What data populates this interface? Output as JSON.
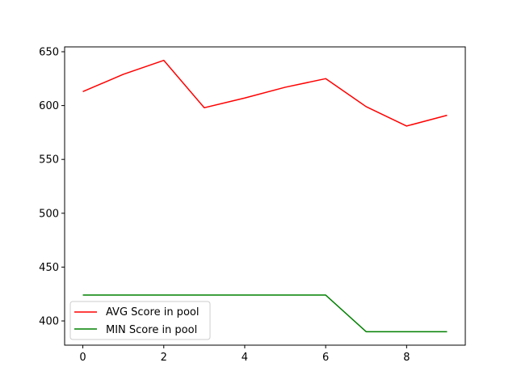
{
  "chart_data": {
    "type": "line",
    "title": "",
    "xlabel": "",
    "ylabel": "",
    "x": [
      0,
      1,
      2,
      3,
      4,
      5,
      6,
      7,
      8,
      9
    ],
    "xlim": [
      -0.45,
      9.45
    ],
    "ylim": [
      377.5,
      654.5
    ],
    "x_ticks": [
      0,
      2,
      4,
      6,
      8
    ],
    "y_ticks": [
      400,
      450,
      500,
      550,
      600,
      650
    ],
    "x_tick_labels": [
      "0",
      "2",
      "4",
      "6",
      "8"
    ],
    "y_tick_labels": [
      "400",
      "450",
      "500",
      "550",
      "600",
      "650"
    ],
    "grid": false,
    "legend_position": "lower-left",
    "series": [
      {
        "name": "AVG Score in pool",
        "color": "#ff0000",
        "values": [
          613,
          629,
          642,
          598,
          607,
          617,
          625,
          599,
          581,
          591
        ]
      },
      {
        "name": "MIN Score in pool",
        "color": "#008000",
        "values": [
          424,
          424,
          424,
          424,
          424,
          424,
          424,
          390,
          390,
          390
        ]
      }
    ]
  }
}
